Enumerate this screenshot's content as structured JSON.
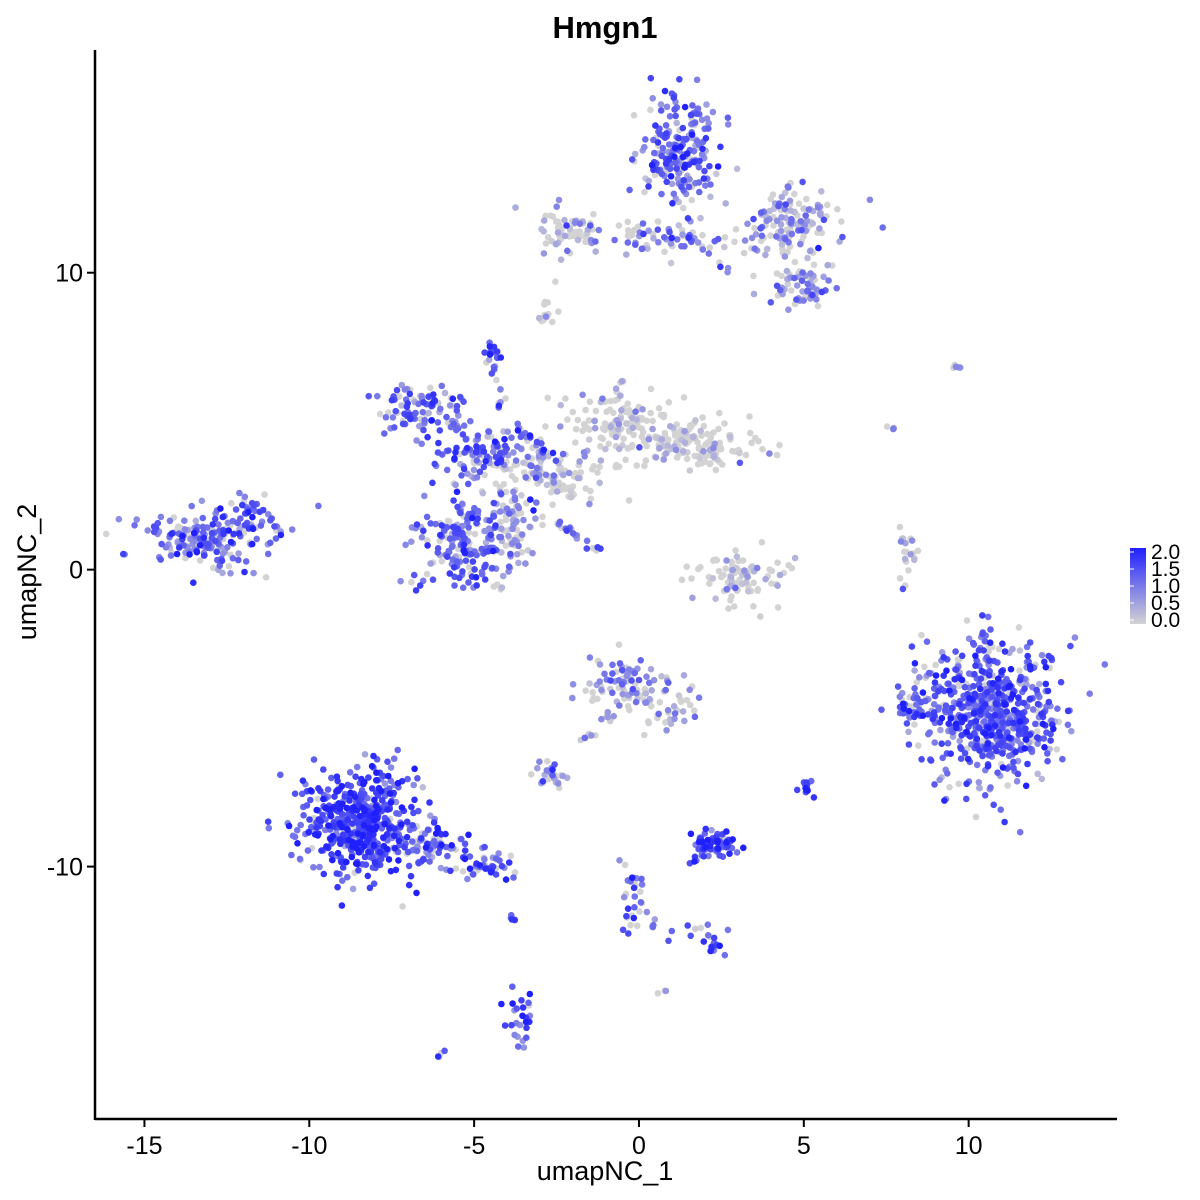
{
  "chart_data": {
    "type": "scatter",
    "title": "Hmgn1",
    "xlabel": "umapNC_1",
    "ylabel": "umapNC_2",
    "xlim": [
      -16.5,
      14.5
    ],
    "ylim": [
      -18.5,
      17.5
    ],
    "x_ticks": [
      -15,
      -10,
      -5,
      0,
      5,
      10
    ],
    "x_tick_labels": [
      "-15",
      "-10",
      "-5",
      "0",
      "5",
      "10"
    ],
    "y_ticks": [
      -10,
      0,
      10
    ],
    "y_tick_labels": [
      "-10",
      "0",
      "10"
    ],
    "grid": false,
    "legend_position": "right",
    "color_scale": {
      "low_color": "#d3d3d3",
      "high_color": "#2020ff",
      "range": [
        0.0,
        2.0
      ],
      "labels": [
        "2.0",
        "1.5",
        "1.0",
        "0.5",
        "0.0"
      ]
    },
    "clusters": [
      {
        "cx": 1.2,
        "cy": 14.2,
        "sx": 0.8,
        "sy": 1.2,
        "n": 220,
        "expr": 1.2
      },
      {
        "cx": 4.6,
        "cy": 11.6,
        "sx": 1.0,
        "sy": 0.8,
        "n": 150,
        "expr": 0.6
      },
      {
        "cx": -2.2,
        "cy": 11.4,
        "sx": 0.5,
        "sy": 0.45,
        "n": 60,
        "expr": 0.4
      },
      {
        "cx": 0.5,
        "cy": 11.2,
        "sx": 1.6,
        "sy": 0.3,
        "n": 60,
        "expr": 0.9
      },
      {
        "cx": 4.9,
        "cy": 9.5,
        "sx": 0.7,
        "sy": 0.5,
        "n": 60,
        "expr": 0.9
      },
      {
        "cx": -2.8,
        "cy": 8.6,
        "sx": 0.2,
        "sy": 0.4,
        "n": 14,
        "expr": 0.1
      },
      {
        "cx": -4.4,
        "cy": 7.3,
        "sx": 0.2,
        "sy": 0.25,
        "n": 18,
        "expr": 1.4
      },
      {
        "cx": -6.5,
        "cy": 5.3,
        "sx": 0.9,
        "sy": 0.6,
        "n": 100,
        "expr": 1.2
      },
      {
        "cx": -4.8,
        "cy": 4.0,
        "sx": 0.9,
        "sy": 0.5,
        "n": 90,
        "expr": 1.3
      },
      {
        "cx": -0.7,
        "cy": 5.0,
        "sx": 1.0,
        "sy": 0.7,
        "n": 120,
        "expr": 0.15
      },
      {
        "cx": 1.6,
        "cy": 4.2,
        "sx": 1.3,
        "sy": 0.5,
        "n": 150,
        "expr": 0.15
      },
      {
        "cx": -2.6,
        "cy": 3.2,
        "sx": 1.0,
        "sy": 0.6,
        "n": 110,
        "expr": 0.5
      },
      {
        "cx": -5.3,
        "cy": 1.0,
        "sx": 0.9,
        "sy": 1.0,
        "n": 200,
        "expr": 1.2
      },
      {
        "cx": -3.9,
        "cy": 1.8,
        "sx": 0.6,
        "sy": 1.0,
        "n": 80,
        "expr": 0.6
      },
      {
        "cx": -13.2,
        "cy": 1.1,
        "sx": 1.2,
        "sy": 0.6,
        "n": 200,
        "expr": 1.1
      },
      {
        "cx": -11.8,
        "cy": 2.0,
        "sx": 0.4,
        "sy": 0.4,
        "n": 30,
        "expr": 1.3
      },
      {
        "cx": 3.1,
        "cy": -0.2,
        "sx": 0.8,
        "sy": 0.6,
        "n": 90,
        "expr": 0.08
      },
      {
        "cx": 8.1,
        "cy": 0.4,
        "sx": 0.2,
        "sy": 0.6,
        "n": 20,
        "expr": 0.7
      },
      {
        "cx": 10.6,
        "cy": -4.8,
        "sx": 1.3,
        "sy": 1.4,
        "n": 650,
        "expr": 1.3
      },
      {
        "cx": 8.3,
        "cy": -4.6,
        "sx": 0.3,
        "sy": 0.4,
        "n": 30,
        "expr": 1.1
      },
      {
        "cx": -0.6,
        "cy": -3.8,
        "sx": 0.7,
        "sy": 0.6,
        "n": 80,
        "expr": 0.8
      },
      {
        "cx": 0.9,
        "cy": -4.5,
        "sx": 0.7,
        "sy": 0.6,
        "n": 40,
        "expr": 0.6
      },
      {
        "cx": -8.5,
        "cy": -8.5,
        "sx": 1.1,
        "sy": 1.1,
        "n": 500,
        "expr": 1.5
      },
      {
        "cx": -6.4,
        "cy": -9.2,
        "sx": 0.8,
        "sy": 0.4,
        "n": 70,
        "expr": 1.3
      },
      {
        "cx": -4.8,
        "cy": -10.0,
        "sx": 0.7,
        "sy": 0.3,
        "n": 45,
        "expr": 1.2
      },
      {
        "cx": -2.6,
        "cy": -6.9,
        "sx": 0.3,
        "sy": 0.25,
        "n": 30,
        "expr": 0.6
      },
      {
        "cx": 2.3,
        "cy": -9.3,
        "sx": 0.45,
        "sy": 0.35,
        "n": 70,
        "expr": 1.5
      },
      {
        "cx": -3.6,
        "cy": -15.3,
        "sx": 0.25,
        "sy": 0.7,
        "n": 28,
        "expr": 1.4
      },
      {
        "cx": 5.1,
        "cy": -7.4,
        "sx": 0.12,
        "sy": 0.2,
        "n": 12,
        "expr": 1.5
      },
      {
        "cx": -0.2,
        "cy": -11.2,
        "sx": 0.2,
        "sy": 0.8,
        "n": 22,
        "expr": 1.1
      },
      {
        "cx": 2.3,
        "cy": -12.7,
        "sx": 0.25,
        "sy": 0.2,
        "n": 14,
        "expr": 1.4
      },
      {
        "cx": 1.5,
        "cy": -12.2,
        "sx": 0.8,
        "sy": 0.2,
        "n": 10,
        "expr": 1.2
      },
      {
        "cx": -3.8,
        "cy": -11.8,
        "sx": 0.1,
        "sy": 0.15,
        "n": 5,
        "expr": 1.3
      },
      {
        "cx": 9.7,
        "cy": 6.8,
        "sx": 0.15,
        "sy": 0.1,
        "n": 5,
        "expr": 0.8
      },
      {
        "cx": 7.6,
        "cy": 4.8,
        "sx": 0.1,
        "sy": 0.1,
        "n": 3,
        "expr": 0.2
      },
      {
        "cx": -6.0,
        "cy": -16.3,
        "sx": 0.1,
        "sy": 0.1,
        "n": 4,
        "expr": 1.3
      },
      {
        "cx": 0.7,
        "cy": -14.2,
        "sx": 0.1,
        "sy": 0.1,
        "n": 3,
        "expr": 0.3
      }
    ],
    "branches": [
      {
        "x0": -4.4,
        "y0": 7.0,
        "x1": -4.0,
        "y1": 4.6,
        "n": 14,
        "expr": 1.1
      },
      {
        "x0": -2.6,
        "y0": 1.6,
        "x1": -1.1,
        "y1": 0.6,
        "n": 22,
        "expr": 1.1
      },
      {
        "x0": -0.5,
        "y0": -4.5,
        "x1": -1.8,
        "y1": -5.8,
        "n": 14,
        "expr": 0.8
      },
      {
        "x0": 0.5,
        "y0": -12.0,
        "x1": -0.5,
        "y1": -9.8,
        "n": 10,
        "expr": 0.9
      },
      {
        "x0": -4.0,
        "y0": 5.2,
        "x1": -2.5,
        "y1": 3.6,
        "n": 20,
        "expr": 1.2
      },
      {
        "x0": 1.2,
        "y0": 11.5,
        "x1": 2.8,
        "y1": 10.0,
        "n": 16,
        "expr": 0.8
      }
    ]
  }
}
